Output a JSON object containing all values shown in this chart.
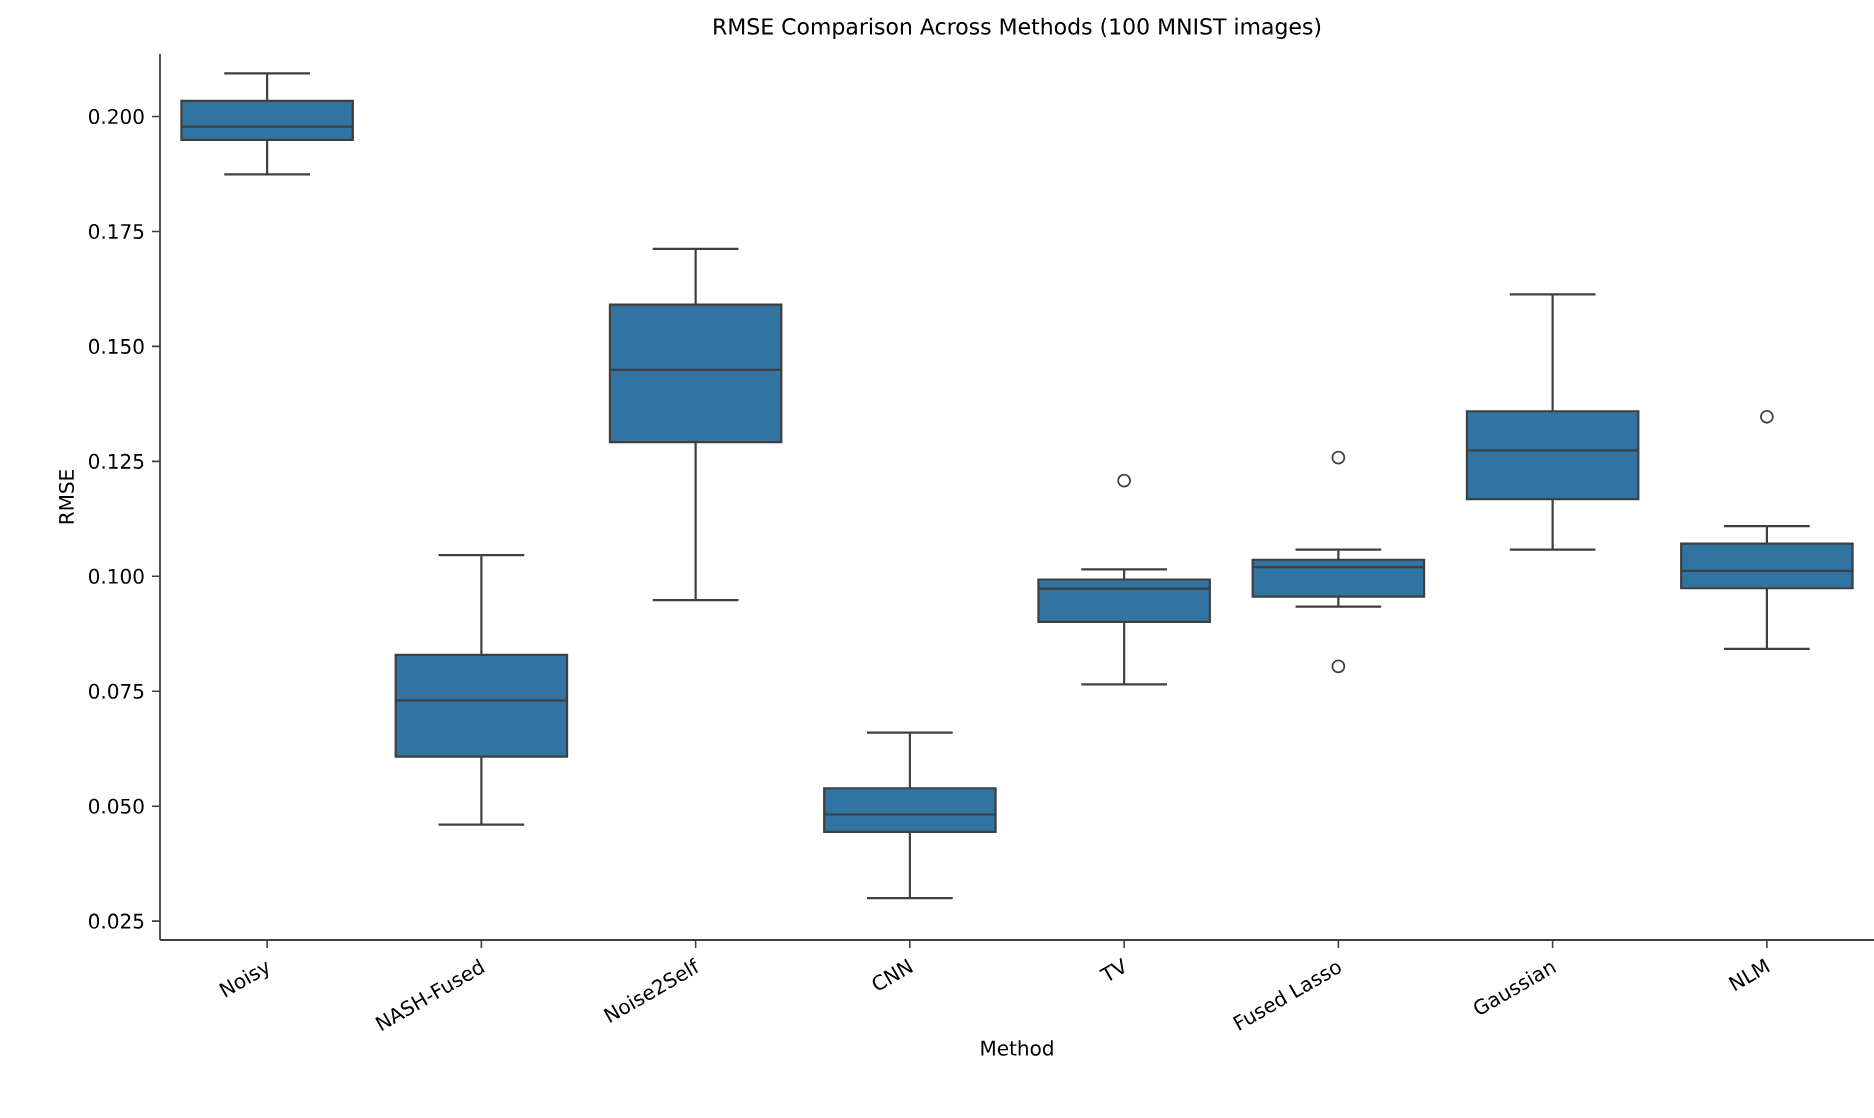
{
  "chart_data": {
    "type": "box",
    "title": "RMSE Comparison Across Methods (100 MNIST images)",
    "xlabel": "Method",
    "ylabel": "RMSE",
    "color": "#3274a1",
    "categories": [
      "Noisy",
      "NASH-Fused",
      "Noise2Self",
      "CNN",
      "TV",
      "Fused Lasso",
      "Gaussian",
      "NLM"
    ],
    "boxes": [
      {
        "low": 0.1874,
        "q1": 0.1949,
        "median": 0.1978,
        "q3": 0.2034,
        "high": 0.2094
      },
      {
        "low": 0.046,
        "q1": 0.0608,
        "median": 0.073,
        "q3": 0.0829,
        "high": 0.1046
      },
      {
        "low": 0.0948,
        "q1": 0.1292,
        "median": 0.1449,
        "q3": 0.1591,
        "high": 0.1712
      },
      {
        "low": 0.03,
        "q1": 0.0444,
        "median": 0.0482,
        "q3": 0.0539,
        "high": 0.066
      },
      {
        "low": 0.0765,
        "q1": 0.0901,
        "median": 0.0973,
        "q3": 0.0993,
        "high": 0.1015,
        "outliers": [
          0.1208
        ]
      },
      {
        "low": 0.0934,
        "q1": 0.0956,
        "median": 0.102,
        "q3": 0.1036,
        "high": 0.1058,
        "outliers": [
          0.1258,
          0.0804
        ]
      },
      {
        "low": 0.1058,
        "q1": 0.1168,
        "median": 0.1274,
        "q3": 0.1359,
        "high": 0.1613
      },
      {
        "low": 0.0842,
        "q1": 0.0974,
        "median": 0.1012,
        "q3": 0.1071,
        "high": 0.1109,
        "outliers": [
          0.1347
        ]
      }
    ],
    "ylim": [
      0.0209,
      0.2136
    ],
    "yticks": [
      0.025,
      {
        "value": 0.05,
        "label": "0.050"
      },
      0.075,
      {
        "value": 0.1,
        "label": "0.100"
      },
      0.125,
      {
        "value": 0.15,
        "label": "0.150"
      },
      0.175,
      {
        "value": 0.2,
        "label": "0.200"
      }
    ]
  }
}
